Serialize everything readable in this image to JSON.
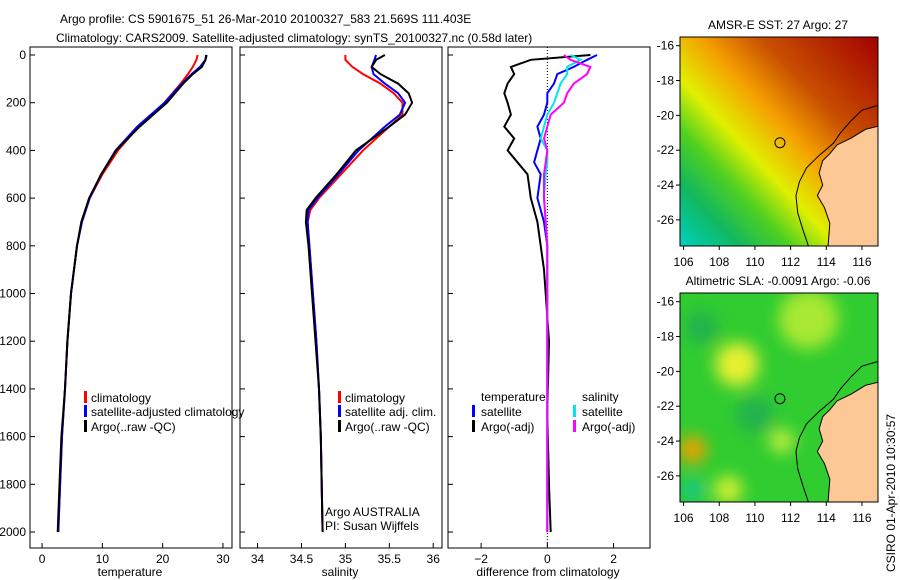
{
  "title": {
    "line1": "Argo profile: CS 5901675_51 26-Mar-2010 20100327_583 21.569S 111.403E",
    "line2": "Climatology: CARS2009. Satellite-adjusted climatology: synTS_20100327.nc (0.58d later)"
  },
  "side_stamp": "CSIRO 01-Apr-2010 10:30:57",
  "colors": {
    "climatology": "#ff0000",
    "satellite": "#0000ff",
    "argo": "#000000",
    "sal_satellite": "#00e5ee",
    "sal_argo": "#ff00ff",
    "land": "#fbc896"
  },
  "chart_data": [
    {
      "type": "line",
      "xlabel": "temperature",
      "xlim": [
        -2,
        31.5
      ],
      "ylim": [
        0,
        2067
      ],
      "xticks": [
        0,
        10,
        20,
        30
      ],
      "yticks": [
        0,
        200,
        400,
        600,
        800,
        1000,
        1200,
        1400,
        1600,
        1800,
        2000
      ],
      "depth": [
        0,
        20,
        50,
        80,
        120,
        200,
        300,
        400,
        500,
        600,
        700,
        800,
        1000,
        1200,
        1400,
        1600,
        1800,
        2000
      ],
      "series": [
        {
          "name": "climatology",
          "color_key": "climatology",
          "values": [
            25.8,
            25.6,
            25.0,
            24.2,
            23.0,
            20.3,
            16.0,
            12.6,
            10.0,
            7.9,
            6.6,
            5.8,
            4.8,
            4.2,
            3.8,
            3.3,
            3.0,
            2.7
          ]
        },
        {
          "name": "satellite-adjusted climatology",
          "color_key": "satellite",
          "values": [
            27.3,
            27.1,
            26.2,
            24.8,
            23.2,
            20.3,
            15.8,
            12.2,
            9.8,
            7.9,
            6.6,
            5.8,
            4.8,
            4.2,
            3.8,
            3.3,
            3.0,
            2.7
          ]
        },
        {
          "name": "Argo(..raw -QC)",
          "color_key": "argo",
          "values": [
            27.2,
            27.1,
            26.5,
            25.0,
            23.4,
            20.7,
            16.2,
            12.3,
            9.8,
            7.8,
            6.5,
            5.8,
            4.8,
            4.2,
            3.8,
            3.2,
            2.9,
            2.6
          ]
        }
      ],
      "legend": [
        "climatology",
        "satellite-adjusted climatology",
        "Argo(..raw -QC)"
      ]
    },
    {
      "type": "line",
      "xlabel": "salinity",
      "xlim": [
        33.8,
        36.1
      ],
      "ylim": [
        0,
        2067
      ],
      "xticks": [
        34,
        34.5,
        35,
        35.5,
        36
      ],
      "depth": [
        0,
        20,
        50,
        80,
        120,
        160,
        200,
        250,
        300,
        400,
        500,
        600,
        650,
        700,
        800,
        1000,
        1200,
        1400,
        1600,
        1800,
        2000
      ],
      "series": [
        {
          "name": "climatology",
          "color_key": "climatology",
          "values": [
            35.0,
            35.0,
            35.08,
            35.2,
            35.4,
            35.55,
            35.65,
            35.65,
            35.5,
            35.2,
            34.95,
            34.7,
            34.6,
            34.57,
            34.59,
            34.63,
            34.67,
            34.7,
            34.72,
            34.73,
            34.74
          ]
        },
        {
          "name": "satellite adj. clim.",
          "color_key": "satellite",
          "values": [
            35.35,
            35.33,
            35.3,
            35.32,
            35.45,
            35.6,
            35.68,
            35.62,
            35.45,
            35.15,
            34.92,
            34.68,
            34.58,
            34.57,
            34.59,
            34.63,
            34.67,
            34.7,
            34.72,
            34.73,
            34.74
          ]
        },
        {
          "name": "Argo(..raw -QC)",
          "color_key": "argo",
          "values": [
            35.45,
            35.35,
            35.3,
            35.4,
            35.6,
            35.72,
            35.76,
            35.68,
            35.5,
            35.12,
            34.9,
            34.66,
            34.56,
            34.55,
            34.58,
            34.62,
            34.66,
            34.7,
            34.72,
            34.73,
            34.74
          ]
        }
      ],
      "legend": [
        "climatology",
        "satellite adj. clim.",
        "Argo(..raw -QC)"
      ],
      "annotation": [
        "Argo AUSTRALIA",
        "PI: Susan Wijffels"
      ]
    },
    {
      "type": "line",
      "xlabel": "difference from climatology",
      "xlim": [
        -3,
        3.1
      ],
      "ylim": [
        0,
        2067
      ],
      "xticks": [
        -2,
        0,
        2
      ],
      "depth": [
        0,
        20,
        50,
        80,
        120,
        160,
        200,
        250,
        300,
        350,
        400,
        450,
        500,
        600,
        700,
        800,
        900,
        1000,
        1200,
        1500,
        1800,
        2000
      ],
      "series": [
        {
          "name": "temperature satellite",
          "color_key": "satellite",
          "values": [
            1.5,
            1.2,
            0.8,
            0.3,
            0.2,
            0.0,
            0.0,
            -0.1,
            -0.3,
            -0.2,
            -0.3,
            -0.4,
            -0.2,
            -0.3,
            -0.1,
            0.0,
            0.0,
            0.0,
            0.0,
            0.0,
            0.0,
            0.0
          ]
        },
        {
          "name": "temperature Argo(-adj)",
          "color_key": "argo",
          "values": [
            1.3,
            -0.5,
            -1.1,
            -1.0,
            -1.2,
            -1.3,
            -1.2,
            -1.1,
            -1.3,
            -1.0,
            -1.2,
            -0.9,
            -0.6,
            -0.5,
            -0.3,
            -0.2,
            -0.1,
            -0.05,
            0.05,
            0.0,
            0.05,
            0.1
          ]
        },
        {
          "name": "salinity satellite",
          "color_key": "sal_satellite",
          "values": [
            0.7,
            1.0,
            0.6,
            0.6,
            0.4,
            0.3,
            0.2,
            0.0,
            -0.1,
            -0.2,
            0.0,
            0.0,
            -0.05,
            -0.1,
            -0.05,
            0.0,
            0.0,
            0.0,
            0.0,
            0.0,
            0.0,
            0.0
          ]
        },
        {
          "name": "salinity Argo(-adj)",
          "color_key": "sal_argo",
          "values": [
            0.5,
            0.7,
            1.3,
            1.2,
            0.8,
            0.6,
            0.5,
            0.1,
            0.0,
            -0.1,
            0.0,
            -0.05,
            -0.1,
            -0.1,
            -0.05,
            0.0,
            0.0,
            0.0,
            0.0,
            0.0,
            0.0,
            0.0
          ]
        }
      ],
      "legend_left": {
        "heading": "temperature",
        "items": [
          "satellite",
          "Argo(-adj)"
        ]
      },
      "legend_right": {
        "heading": "salinity",
        "items": [
          "satellite",
          "Argo(-adj)"
        ]
      }
    },
    {
      "type": "heatmap",
      "title": "AMSR-E SST: 27 Argo: 27",
      "xlim": [
        105.8,
        116.9
      ],
      "ylim": [
        -27.5,
        -15.5
      ],
      "xticks": [
        106,
        108,
        110,
        112,
        114,
        116
      ],
      "yticks": [
        -16,
        -18,
        -20,
        -22,
        -24,
        -26
      ],
      "marker": {
        "lon": 111.403,
        "lat": -21.569
      }
    },
    {
      "type": "heatmap",
      "title": "Altimetric SLA: -0.0091 Argo: -0.06",
      "xlim": [
        105.8,
        116.9
      ],
      "ylim": [
        -27.5,
        -15.5
      ],
      "xticks": [
        106,
        108,
        110,
        112,
        114,
        116
      ],
      "yticks": [
        -16,
        -18,
        -20,
        -22,
        -24,
        -26
      ],
      "marker": {
        "lon": 111.403,
        "lat": -21.569
      }
    }
  ],
  "map_geo": {
    "land": [
      [
        117,
        -20.6
      ],
      [
        116.2,
        -20.8
      ],
      [
        115.4,
        -21.3
      ],
      [
        114.6,
        -21.7
      ],
      [
        114.2,
        -22.2
      ],
      [
        113.8,
        -22.6
      ],
      [
        113.6,
        -23.3
      ],
      [
        113.8,
        -24.0
      ],
      [
        113.5,
        -24.6
      ],
      [
        113.9,
        -25.3
      ],
      [
        114.2,
        -26.2
      ],
      [
        114.1,
        -27.5
      ],
      [
        117,
        -27.5
      ]
    ],
    "isobath": [
      [
        117,
        -19.4
      ],
      [
        116,
        -19.7
      ],
      [
        115.4,
        -20.3
      ],
      [
        114.8,
        -21.0
      ],
      [
        114.4,
        -21.6
      ],
      [
        113.6,
        -22.3
      ],
      [
        112.9,
        -23.0
      ],
      [
        112.5,
        -23.8
      ],
      [
        112.3,
        -24.6
      ],
      [
        112.4,
        -25.6
      ],
      [
        112.7,
        -26.6
      ],
      [
        113.0,
        -27.5
      ]
    ]
  }
}
